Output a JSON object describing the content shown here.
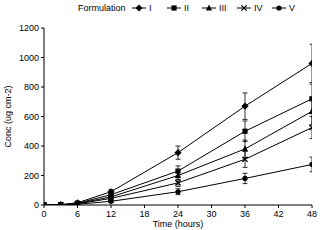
{
  "chart_data": {
    "type": "line",
    "legend_title": "Formulation",
    "x_label": "Time (hours)",
    "y_label": "Conc (ug cm-2)",
    "x": [
      0,
      3,
      6,
      12,
      24,
      36,
      48
    ],
    "xlim": [
      0,
      48
    ],
    "xticks": [
      0,
      6,
      12,
      18,
      24,
      30,
      36,
      42,
      48
    ],
    "ylim": [
      0,
      1200
    ],
    "yticks": [
      0,
      200,
      400,
      600,
      800,
      1000,
      1200
    ],
    "grid": false,
    "legend": "top",
    "series": [
      {
        "name": "I",
        "color": "#000000",
        "marker": "diamond",
        "values": [
          0,
          2,
          15,
          90,
          355,
          670,
          960
        ],
        "errors": [
          0,
          0,
          5,
          15,
          45,
          90,
          130
        ]
      },
      {
        "name": "II",
        "color": "#000000",
        "marker": "square",
        "values": [
          0,
          2,
          12,
          70,
          230,
          500,
          720
        ],
        "errors": [
          0,
          0,
          4,
          12,
          35,
          70,
          100
        ]
      },
      {
        "name": "III",
        "color": "#000000",
        "marker": "triangle",
        "values": [
          0,
          1,
          10,
          55,
          200,
          380,
          635
        ],
        "errors": [
          0,
          0,
          3,
          10,
          30,
          60,
          90
        ]
      },
      {
        "name": "IV",
        "color": "#000000",
        "marker": "cross",
        "values": [
          0,
          1,
          8,
          45,
          150,
          310,
          525
        ],
        "errors": [
          0,
          0,
          3,
          10,
          25,
          55,
          75
        ]
      },
      {
        "name": "V",
        "color": "#000000",
        "marker": "circle",
        "values": [
          0,
          1,
          5,
          25,
          90,
          180,
          275
        ],
        "errors": [
          0,
          0,
          2,
          8,
          20,
          35,
          50
        ]
      }
    ]
  }
}
